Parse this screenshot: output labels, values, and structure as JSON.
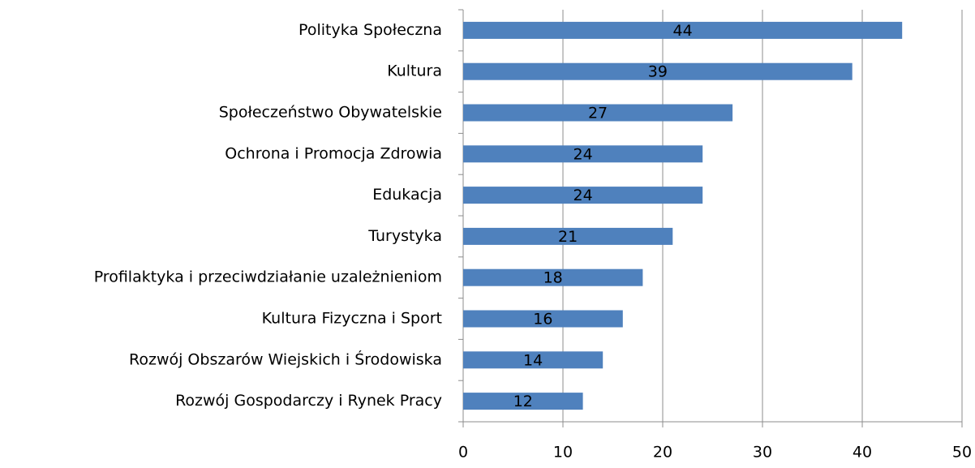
{
  "chart_data": {
    "type": "hbar",
    "categories": [
      "Polityka Społeczna",
      "Kultura",
      "Społeczeństwo Obywatelskie",
      "Ochrona i Promocja Zdrowia",
      "Edukacja",
      "Turystyka",
      "Profilaktyka i przeciwdziałanie uzależnieniom",
      "Kultura Fizyczna i Sport",
      "Rozwój Obszarów Wiejskich i Środowiska",
      "Rozwój Gospodarczy i Rynek Pracy"
    ],
    "values": [
      44,
      39,
      27,
      24,
      24,
      21,
      18,
      16,
      14,
      12
    ],
    "color": "#4f81bd",
    "xlim": [
      0,
      50
    ],
    "xticks": [
      0,
      10,
      20,
      30,
      40,
      50
    ],
    "grid": true
  }
}
